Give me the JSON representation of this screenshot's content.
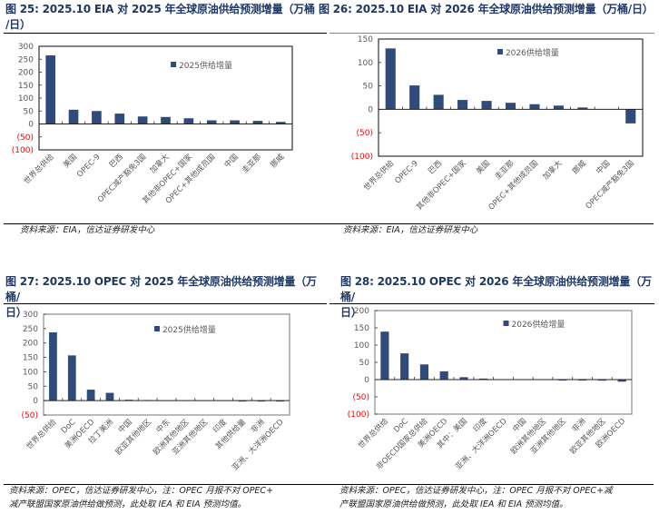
{
  "figures": [
    {
      "id": "fig25",
      "title_line1": "图 25:  2025.10 EIA 对 2025 年全球原油供给预测增量（万桶",
      "title_line2": "/日）",
      "source": "资料来源：EIA，信达证券研发中心",
      "source_line2": ""
    },
    {
      "id": "fig26",
      "title_line1": "图 26:  2025.10 EIA 对 2026 年全球原油供给预测增量（万桶/日）",
      "title_line2": "",
      "source": "资料来源：EIA，信达证券研发中心",
      "source_line2": ""
    },
    {
      "id": "fig27",
      "title_line1": "图 27:  2025.10 OPEC 对 2025 年全球原油供给预测增量（万桶/",
      "title_line2": "日）",
      "source": "资料来源：OPEC，信达证券研发中心，注：OPEC 月报不对 OPEC+",
      "source_line2": "减产联盟国家原油供给做预测，此处取 IEA 和 EIA 预测均值。"
    },
    {
      "id": "fig28",
      "title_line1": "图 28:  2025.10 OPEC 对 2026 年全球原油供给预测增量（万桶/",
      "title_line2": "日）",
      "source": "资料来源：OPEC，信达证券研发中心，注：OPEC 月报不对 OPEC+减",
      "source_line2": "产联盟国家原油供给做预测，此处取 IEA 和 EIA 预测均值。"
    }
  ],
  "colors": {
    "bar": "#2f4b7c",
    "axis_text": "#595959",
    "negative_text": "#ff0000",
    "title": "#1f3864"
  },
  "chart_data": [
    {
      "type": "bar",
      "title": "2025.10 EIA 对 2025 年全球原油供给预测增量（万桶/日）",
      "legend": "2025供给增量",
      "legend_position": "top-center",
      "categories": [
        "世界总供给",
        "美国",
        "OPEC-9",
        "巴西",
        "OPEC减产豁免3国",
        "加拿大",
        "其他非OPEC+国家",
        "OPEC+其他成员国",
        "中国",
        "圭亚那",
        "挪威"
      ],
      "values": [
        265,
        55,
        50,
        40,
        29,
        27,
        22,
        14,
        14,
        12,
        8
      ],
      "ylim": [
        -100,
        300
      ],
      "yticks": [
        300,
        250,
        200,
        150,
        100,
        50,
        0,
        -50,
        -100
      ],
      "ytick_labels": [
        "300",
        "250",
        "200",
        "150",
        "100",
        "50",
        "0",
        "(50)",
        "(100)"
      ],
      "grid": false
    },
    {
      "type": "bar",
      "title": "2025.10 EIA 对 2026 年全球原油供给预测增量（万桶/日）",
      "legend": "2026供给增量",
      "legend_position": "top-center",
      "categories": [
        "世界总供给",
        "OPEC-9",
        "巴西",
        "其他非OPEC+国家",
        "美国",
        "圭亚那",
        "OPEC+其他成员国",
        "加拿大",
        "挪威",
        "中国",
        "OPEC减产豁免3国"
      ],
      "values": [
        130,
        51,
        31,
        20,
        18,
        14,
        11,
        8,
        4,
        0,
        -30
      ],
      "ylim": [
        -100,
        150
      ],
      "yticks": [
        150,
        100,
        50,
        0,
        -50,
        -100
      ],
      "ytick_labels": [
        "150",
        "100",
        "50",
        "0",
        "(50)",
        "(100)"
      ],
      "grid": false
    },
    {
      "type": "bar",
      "title": "2025.10 OPEC 对 2025 年全球原油供给预测增量（万桶/日）",
      "legend": "2025供给增量",
      "legend_position": "top-center",
      "categories": [
        "世界总供给",
        "DoC",
        "美洲OECD",
        "拉丁美洲",
        "中国",
        "欧亚其他地区",
        "中东",
        "欧洲其他地区",
        "亚洲其他地区",
        "印度",
        "其他供给量",
        "非洲",
        "亚洲、大洋洲OECD"
      ],
      "values": [
        237,
        157,
        38,
        27,
        3,
        2,
        0,
        0,
        0,
        0,
        -1,
        -3,
        -3
      ],
      "ylim": [
        -50,
        300
      ],
      "yticks": [
        300,
        250,
        200,
        150,
        100,
        50,
        0,
        -50
      ],
      "ytick_labels": [
        "300",
        "250",
        "200",
        "150",
        "100",
        "50",
        "0",
        "(50)"
      ],
      "grid": false
    },
    {
      "type": "bar",
      "title": "2025.10 OPEC 对 2026 年全球原油供给预测增量（万桶/日）",
      "legend": "2026供给增量",
      "legend_position": "top-center",
      "categories": [
        "世界总供给",
        "DoC",
        "非OECD国家总供给",
        "美洲OECD",
        "其中：美国",
        "印度",
        "亚洲、大洋洲OECD",
        "中国",
        "欧洲其他地区",
        "亚洲其他地区",
        "非洲",
        "欧亚其他地区",
        "欧洲OECD"
      ],
      "values": [
        139,
        76,
        44,
        24,
        7,
        3,
        0,
        0,
        0,
        -2,
        -2,
        -3,
        -6
      ],
      "ylim": [
        -100,
        200
      ],
      "yticks": [
        200,
        150,
        100,
        50,
        0,
        -50,
        -100
      ],
      "ytick_labels": [
        "200",
        "150",
        "100",
        "50",
        "0",
        "(50)",
        "(100)"
      ],
      "grid": false
    }
  ]
}
